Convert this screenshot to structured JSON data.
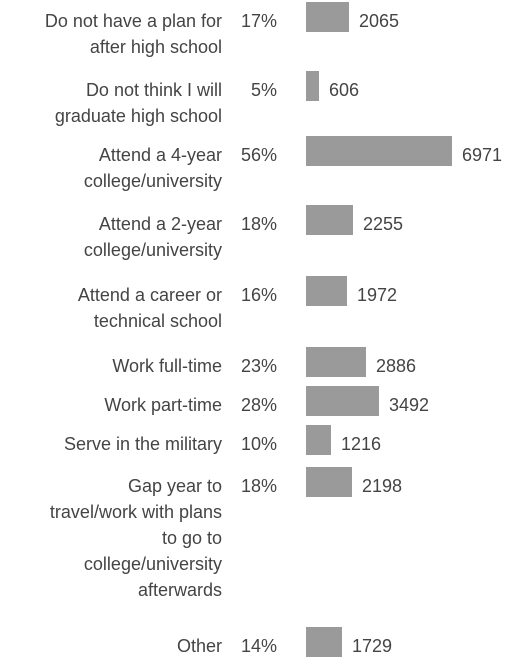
{
  "chart_data": {
    "type": "bar",
    "orientation": "horizontal",
    "categories": [
      "Do not have a plan for after high school",
      "Do not think I will graduate high school",
      "Attend a 4-year college/university",
      "Attend a 2-year college/university",
      "Attend a career or technical school",
      "Work full-time",
      "Work part-time",
      "Serve in the military",
      "Gap year to travel/work with plans to go to college/university afterwards",
      "Other"
    ],
    "category_lines": [
      [
        "Do not have a plan for",
        "after high school"
      ],
      [
        "Do not think I will",
        "graduate high school"
      ],
      [
        "Attend a 4-year",
        "college/university"
      ],
      [
        "Attend a 2-year",
        "college/university"
      ],
      [
        "Attend a career or",
        "technical school"
      ],
      [
        "Work full-time"
      ],
      [
        "Work part-time"
      ],
      [
        "Serve in the military"
      ],
      [
        "Gap year to",
        "travel/work with plans",
        "to go to",
        "college/university",
        "afterwards"
      ],
      [
        "Other"
      ]
    ],
    "percentages": [
      "17%",
      "5%",
      "56%",
      "18%",
      "16%",
      "23%",
      "28%",
      "10%",
      "18%",
      "14%"
    ],
    "values": [
      2065,
      606,
      6971,
      2255,
      1972,
      2886,
      3492,
      1216,
      2198,
      1729
    ],
    "bar_color": "#9a9a9a",
    "text_color": "#444444"
  }
}
